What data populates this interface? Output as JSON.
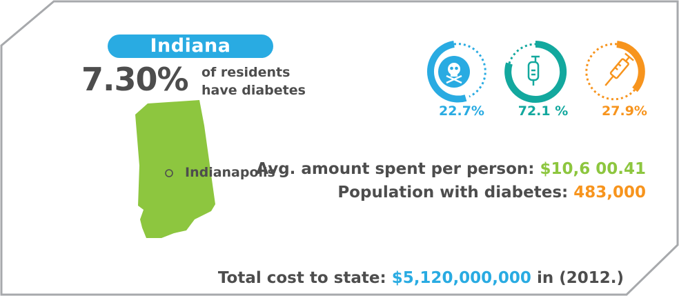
{
  "state": {
    "name": "Indiana",
    "percent": "7.30%",
    "caption_line1": "of residents",
    "caption_line2": "have diabetes"
  },
  "map": {
    "city": "Indianapolis"
  },
  "stats": [
    {
      "icon": "skull-crossbones-icon",
      "value": "22.7%",
      "color": "#29abe2",
      "fraction": 0.227
    },
    {
      "icon": "iv-bag-icon",
      "value": "72.1 %",
      "color": "#13a89e",
      "fraction": 0.721
    },
    {
      "icon": "syringe-icon",
      "value": "27.9%",
      "color": "#f7941d",
      "fraction": 0.279
    }
  ],
  "avg_spent": {
    "label": "Avg. amount spent per person:",
    "value": "$10,6 00.41"
  },
  "population": {
    "label": "Population with diabetes:",
    "value": "483,000"
  },
  "total_cost": {
    "label": "Total cost to state:",
    "value": "$5,120,000,000",
    "suffix": "in (2012.)"
  },
  "colors": {
    "blue": "#29abe2",
    "teal": "#13a89e",
    "orange": "#f7941d",
    "green": "#8dc63f",
    "text": "#4d4d4d"
  }
}
